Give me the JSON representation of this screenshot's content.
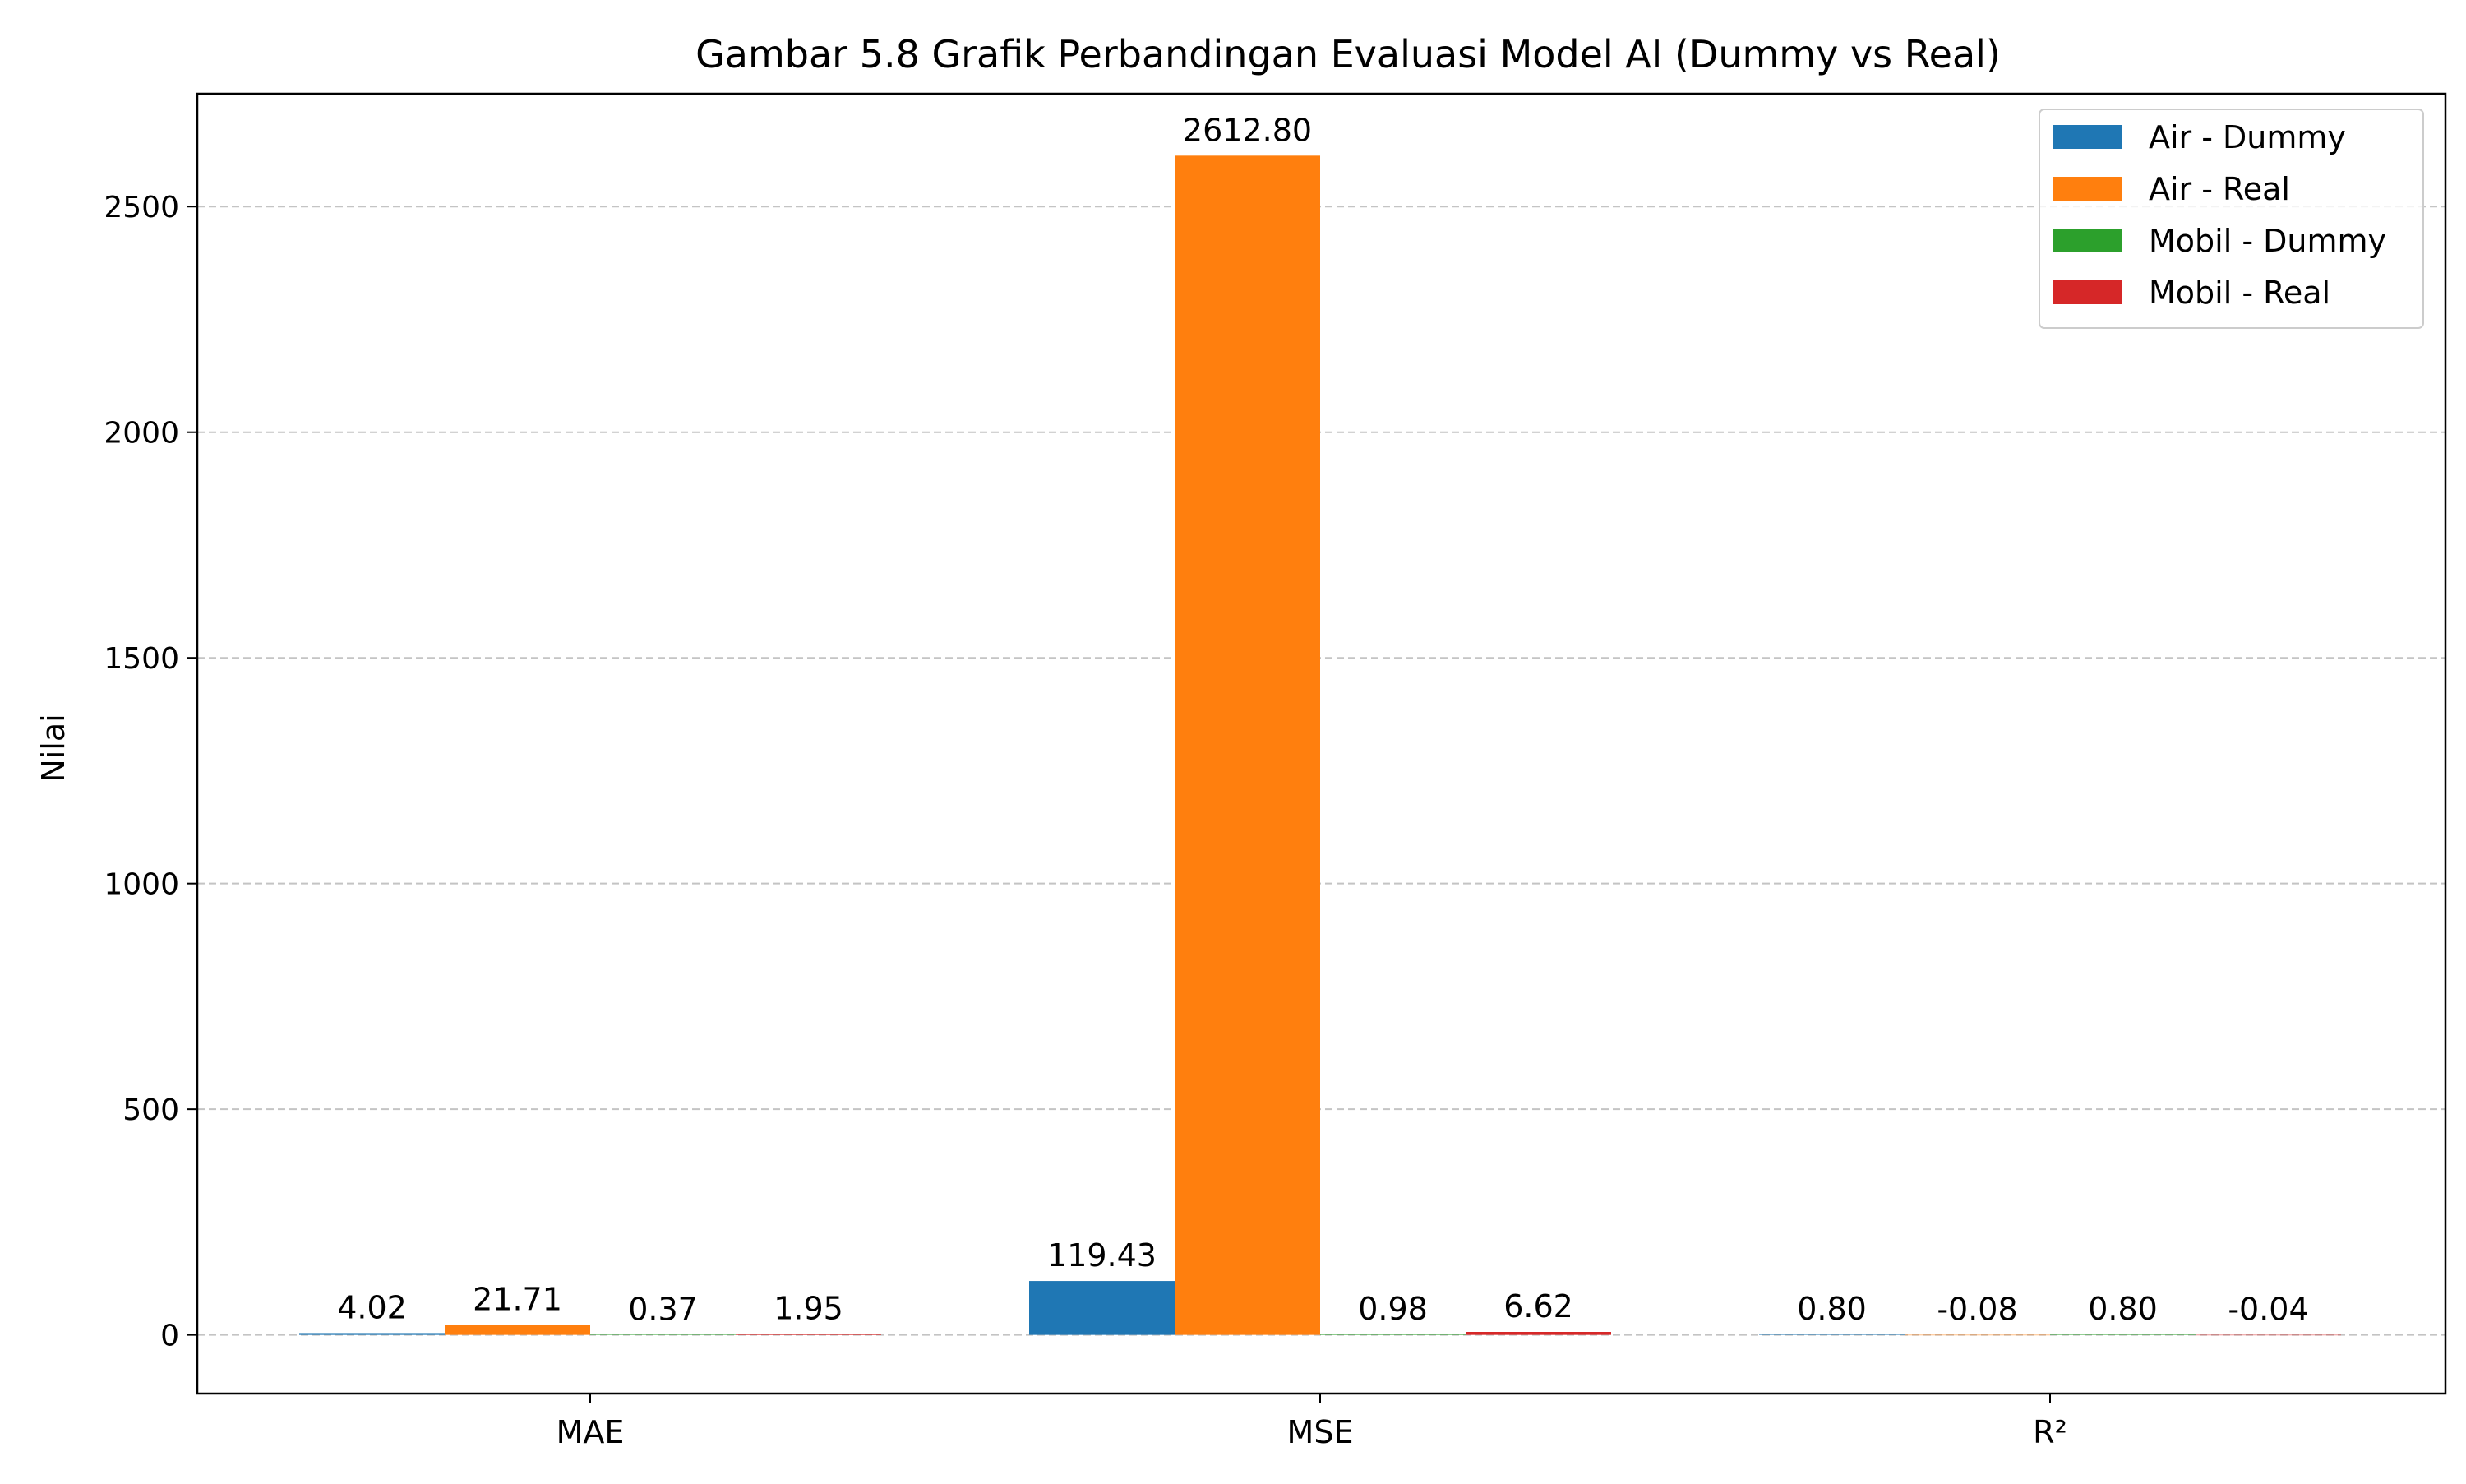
{
  "chart_data": {
    "type": "bar",
    "title": "Gambar 5.8 Grafik Perbandingan Evaluasi Model AI (Dummy vs Real)",
    "xlabel": "",
    "ylabel": "Nilai",
    "ylim": [
      -130,
      2750
    ],
    "yticks": [
      0,
      500,
      1000,
      1500,
      2000,
      2500
    ],
    "grid": "horizontal dashed",
    "legend_position": "top-right",
    "categories": [
      "MAE",
      "MSE",
      "R²"
    ],
    "series": [
      {
        "name": "Air - Dummy",
        "color": "#1f77b4",
        "values": [
          4.02,
          119.43,
          0.8
        ],
        "labels": [
          "4.02",
          "119.43",
          "0.80"
        ]
      },
      {
        "name": "Air - Real",
        "color": "#ff7f0e",
        "values": [
          21.71,
          2612.8,
          -0.08
        ],
        "labels": [
          "21.71",
          "2612.80",
          "-0.08"
        ]
      },
      {
        "name": "Mobil - Dummy",
        "color": "#2ca02c",
        "values": [
          0.37,
          0.98,
          0.8
        ],
        "labels": [
          "0.37",
          "0.98",
          "0.80"
        ]
      },
      {
        "name": "Mobil - Real",
        "color": "#d62728",
        "values": [
          1.95,
          6.62,
          -0.04
        ],
        "labels": [
          "1.95",
          "6.62",
          "-0.04"
        ]
      }
    ]
  }
}
